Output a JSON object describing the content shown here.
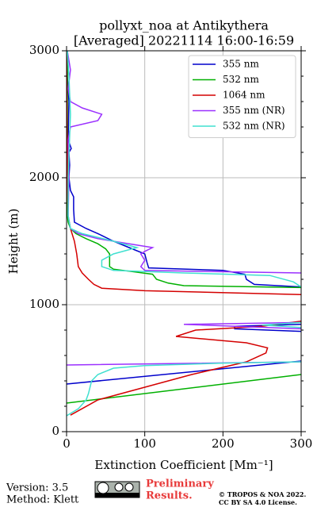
{
  "chart_data": {
    "type": "line",
    "title": "pollyxt_noa at Antikythera",
    "subtitle": "[Averaged] 20221114 16:00-16:59",
    "x_label": "Extinction Coefficient [Mm⁻¹]",
    "y_label": "Height (m)",
    "xlim": [
      0,
      300
    ],
    "xticks": [
      0,
      100,
      200,
      300
    ],
    "ylim": [
      0,
      3000
    ],
    "yticks": [
      0,
      1000,
      2000,
      3000
    ],
    "yminorticks": [
      200,
      400,
      600,
      800,
      1200,
      1400,
      1600,
      1800,
      2200,
      2400,
      2600,
      2800
    ],
    "grid": true,
    "legend": "upper right",
    "series": [
      {
        "name": "355 nm",
        "color": "#0000cc",
        "heights": [
          375,
          556,
          600,
          790,
          810,
          830,
          845,
          900,
          1140,
          1160,
          1200,
          1240,
          1270,
          1290,
          1330,
          1400,
          1450,
          1500,
          1560,
          1600,
          1650,
          1750,
          1850,
          1900,
          2000,
          2100,
          2200,
          2230,
          2300,
          2600,
          2800,
          3000
        ],
        "values": [
          0,
          300,
          null,
          300,
          215,
          215,
          300,
          null,
          300,
          240,
          230,
          228,
          200,
          105,
          103,
          100,
          80,
          60,
          40,
          25,
          10,
          9,
          9,
          5,
          3,
          4,
          3,
          6,
          2,
          3,
          1,
          1
        ]
      },
      {
        "name": "532 nm",
        "color": "#00b000",
        "heights": [
          225,
          450,
          700,
          1135,
          1150,
          1170,
          1200,
          1240,
          1280,
          1300,
          1350,
          1400,
          1440,
          1480,
          1520,
          1560,
          1600,
          1650,
          1700,
          2000,
          3000
        ],
        "values": [
          0,
          300,
          null,
          300,
          150,
          130,
          115,
          110,
          60,
          55,
          55,
          55,
          50,
          40,
          25,
          12,
          5,
          2,
          1,
          1,
          1
        ]
      },
      {
        "name": "1064 nm",
        "color": "#d40000",
        "heights": [
          130,
          250,
          350,
          450,
          550,
          620,
          660,
          700,
          750,
          800,
          830,
          870,
          950,
          1080,
          1110,
          1130,
          1160,
          1200,
          1250,
          1300,
          1400,
          1500,
          1600,
          1700,
          2000,
          3000
        ],
        "values": [
          5,
          40,
          100,
          160,
          230,
          255,
          257,
          230,
          140,
          165,
          250,
          300,
          null,
          300,
          100,
          45,
          35,
          28,
          20,
          15,
          13,
          10,
          5,
          2,
          1,
          0
        ]
      },
      {
        "name": "355 nm (NR)",
        "color": "#9b30ff",
        "heights": [
          525,
          550,
          700,
          810,
          845,
          860,
          1000,
          1250,
          1270,
          1300,
          1350,
          1400,
          1420,
          1450,
          1480,
          1520,
          1560,
          1600,
          1700,
          2000,
          2300,
          2400,
          2450,
          2500,
          2550,
          2600,
          2700,
          2850,
          3000
        ],
        "values": [
          0,
          300,
          null,
          300,
          150,
          300,
          null,
          300,
          100,
          95,
          100,
          95,
          100,
          110,
          80,
          40,
          15,
          5,
          2,
          3,
          2,
          5,
          40,
          45,
          20,
          5,
          2,
          5,
          1
        ]
      },
      {
        "name": "532 nm (NR)",
        "color": "#40e0d0",
        "heights": [
          125,
          180,
          250,
          300,
          400,
          450,
          500,
          520,
          540,
          550,
          700,
          820,
          840,
          860,
          1000,
          1140,
          1180,
          1230,
          1250,
          1270,
          1300,
          1350,
          1400,
          1450,
          1500,
          1560,
          1600,
          1700,
          2000,
          2500,
          2800,
          3000
        ],
        "values": [
          0,
          15,
          25,
          28,
          32,
          40,
          60,
          100,
          200,
          300,
          null,
          300,
          250,
          300,
          null,
          300,
          290,
          260,
          150,
          60,
          45,
          45,
          60,
          90,
          60,
          20,
          5,
          2,
          2,
          5,
          3,
          1
        ]
      }
    ]
  },
  "footer": {
    "version": "Version: 3.5",
    "method": "Method: Klett",
    "preliminary": [
      "Preliminary",
      "Results."
    ],
    "copyright": "© TROPOS & NOA 2022.",
    "license": "CC BY SA 4.0 License."
  }
}
